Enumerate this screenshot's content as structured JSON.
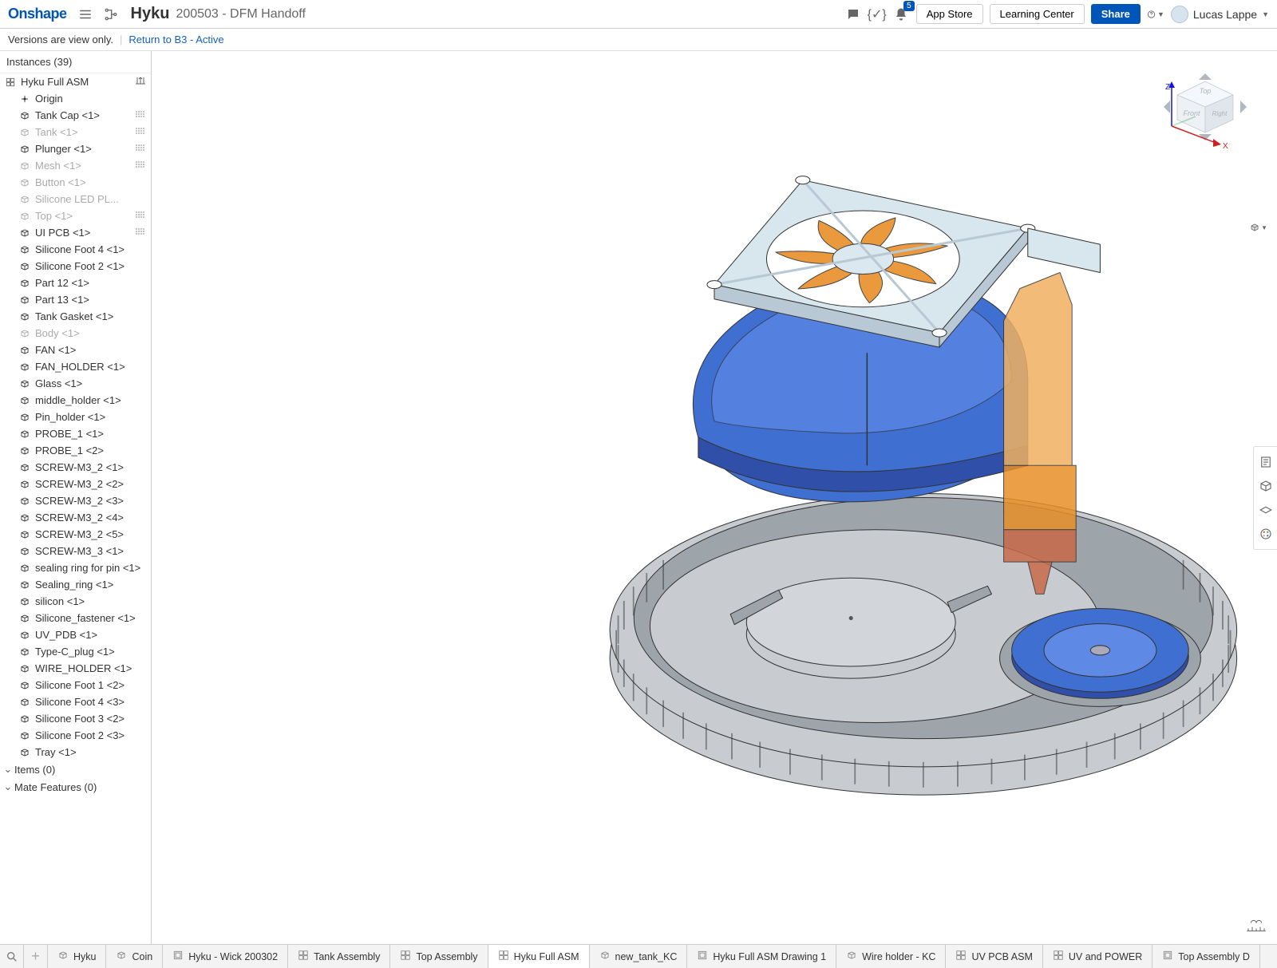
{
  "header": {
    "logo": "Onshape",
    "doc_title": "Hyku",
    "doc_subtitle": "200503 - DFM Handoff",
    "notif_count": "5",
    "app_store": "App Store",
    "learning_center": "Learning Center",
    "share": "Share",
    "user_name": "Lucas Lappe"
  },
  "subbar": {
    "readonly_msg": "Versions are view only.",
    "return_link": "Return to B3 - Active"
  },
  "sidebar": {
    "header": "Instances (39)",
    "root": "Hyku Full ASM",
    "items": [
      {
        "label": "Origin",
        "dim": false,
        "icon": "origin",
        "suffix": ""
      },
      {
        "label": "Tank Cap <1>",
        "dim": false,
        "icon": "part",
        "suffix": "p"
      },
      {
        "label": "Tank <1>",
        "dim": true,
        "icon": "part",
        "suffix": "p"
      },
      {
        "label": "Plunger <1>",
        "dim": false,
        "icon": "part",
        "suffix": "p"
      },
      {
        "label": "Mesh <1>",
        "dim": true,
        "icon": "part",
        "suffix": "p"
      },
      {
        "label": "Button <1>",
        "dim": true,
        "icon": "part",
        "suffix": ""
      },
      {
        "label": "Silicone LED PL...",
        "dim": true,
        "icon": "part",
        "suffix": ""
      },
      {
        "label": "Top <1>",
        "dim": true,
        "icon": "part",
        "suffix": "p"
      },
      {
        "label": "UI PCB <1>",
        "dim": false,
        "icon": "part",
        "suffix": "p"
      },
      {
        "label": "Silicone Foot 4 <1>",
        "dim": false,
        "icon": "part",
        "suffix": ""
      },
      {
        "label": "Silicone Foot 2 <1>",
        "dim": false,
        "icon": "part",
        "suffix": ""
      },
      {
        "label": "Part 12 <1>",
        "dim": false,
        "icon": "part",
        "suffix": ""
      },
      {
        "label": "Part 13 <1>",
        "dim": false,
        "icon": "part",
        "suffix": ""
      },
      {
        "label": "Tank Gasket <1>",
        "dim": false,
        "icon": "part",
        "suffix": ""
      },
      {
        "label": "Body <1>",
        "dim": true,
        "icon": "part",
        "suffix": ""
      },
      {
        "label": "FAN <1>",
        "dim": false,
        "icon": "part",
        "suffix": ""
      },
      {
        "label": "FAN_HOLDER <1>",
        "dim": false,
        "icon": "part",
        "suffix": ""
      },
      {
        "label": "Glass <1>",
        "dim": false,
        "icon": "part",
        "suffix": ""
      },
      {
        "label": "middle_holder <1>",
        "dim": false,
        "icon": "part",
        "suffix": ""
      },
      {
        "label": "Pin_holder <1>",
        "dim": false,
        "icon": "part",
        "suffix": ""
      },
      {
        "label": "PROBE_1 <1>",
        "dim": false,
        "icon": "part",
        "suffix": ""
      },
      {
        "label": "PROBE_1 <2>",
        "dim": false,
        "icon": "part",
        "suffix": ""
      },
      {
        "label": "SCREW-M3_2 <1>",
        "dim": false,
        "icon": "part",
        "suffix": ""
      },
      {
        "label": "SCREW-M3_2 <2>",
        "dim": false,
        "icon": "part",
        "suffix": ""
      },
      {
        "label": "SCREW-M3_2 <3>",
        "dim": false,
        "icon": "part",
        "suffix": ""
      },
      {
        "label": "SCREW-M3_2 <4>",
        "dim": false,
        "icon": "part",
        "suffix": ""
      },
      {
        "label": "SCREW-M3_2 <5>",
        "dim": false,
        "icon": "part",
        "suffix": ""
      },
      {
        "label": "SCREW-M3_3 <1>",
        "dim": false,
        "icon": "part",
        "suffix": ""
      },
      {
        "label": "sealing ring for pin <1>",
        "dim": false,
        "icon": "part",
        "suffix": ""
      },
      {
        "label": "Sealing_ring <1>",
        "dim": false,
        "icon": "part",
        "suffix": ""
      },
      {
        "label": "silicon <1>",
        "dim": false,
        "icon": "part",
        "suffix": ""
      },
      {
        "label": "Silicone_fastener <1>",
        "dim": false,
        "icon": "part",
        "suffix": ""
      },
      {
        "label": "UV_PDB <1>",
        "dim": false,
        "icon": "part",
        "suffix": ""
      },
      {
        "label": "Type-C_plug <1>",
        "dim": false,
        "icon": "part",
        "suffix": ""
      },
      {
        "label": "WIRE_HOLDER <1>",
        "dim": false,
        "icon": "part",
        "suffix": ""
      },
      {
        "label": "Silicone Foot 1 <2>",
        "dim": false,
        "icon": "part",
        "suffix": ""
      },
      {
        "label": "Silicone Foot 4 <3>",
        "dim": false,
        "icon": "part",
        "suffix": ""
      },
      {
        "label": "Silicone Foot 3 <2>",
        "dim": false,
        "icon": "part",
        "suffix": ""
      },
      {
        "label": "Silicone Foot 2 <3>",
        "dim": false,
        "icon": "part",
        "suffix": ""
      },
      {
        "label": "Tray <1>",
        "dim": false,
        "icon": "part",
        "suffix": ""
      }
    ],
    "sections": [
      {
        "label": "Items (0)"
      },
      {
        "label": "Mate Features (0)"
      }
    ]
  },
  "viewcube": {
    "z": "Z",
    "x": "X",
    "top": "Top",
    "front": "Front",
    "right": "Right",
    "z_color": "#1414e0",
    "x_color": "#d02020"
  },
  "bottom_tabs": [
    {
      "label": "Hyku",
      "icon": "ps",
      "active": false
    },
    {
      "label": "Coin",
      "icon": "ps",
      "active": false
    },
    {
      "label": "Hyku - Wick 200302",
      "icon": "dwg",
      "active": false
    },
    {
      "label": "Tank Assembly",
      "icon": "asm",
      "active": false
    },
    {
      "label": "Top Assembly",
      "icon": "asm",
      "active": false
    },
    {
      "label": "Hyku Full ASM",
      "icon": "asm",
      "active": true
    },
    {
      "label": "new_tank_KC",
      "icon": "ps",
      "active": false
    },
    {
      "label": "Hyku Full ASM Drawing 1",
      "icon": "dwg",
      "active": false
    },
    {
      "label": "Wire holder - KC",
      "icon": "ps",
      "active": false
    },
    {
      "label": "UV PCB ASM",
      "icon": "asm",
      "active": false
    },
    {
      "label": "UV and POWER",
      "icon": "asm",
      "active": false
    },
    {
      "label": "Top Assembly D",
      "icon": "dwg",
      "active": false
    }
  ],
  "model": {
    "colors": {
      "body_gray": "#9da4aa",
      "body_gray_light": "#c8ccd0",
      "blue_dark": "#2f4fa8",
      "blue_mid": "#3f6fd0",
      "blue_light": "#5e8ae6",
      "silver": "#b8c8d4",
      "silver_light": "#d8e6ee",
      "orange": "#e89028",
      "orange_light": "#f0b060",
      "terracotta": "#c86a48",
      "edge": "#333"
    }
  }
}
